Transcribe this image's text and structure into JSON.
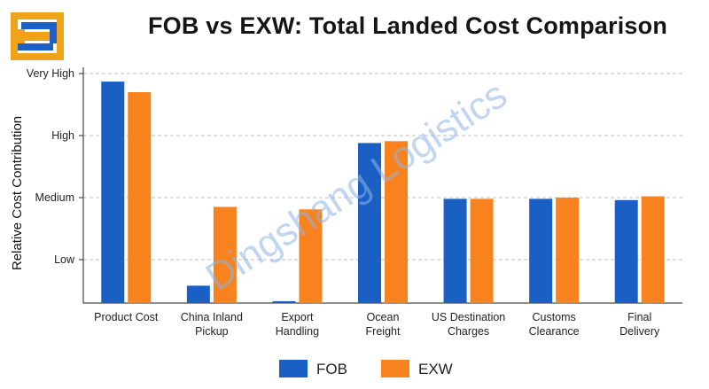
{
  "logo": {
    "icon": "brand-logo-icon",
    "colors": [
      "#f0a21a",
      "#1f5fc6"
    ]
  },
  "watermark": "Dingshang Logistics",
  "chart_data": {
    "type": "bar",
    "title": "FOB vs EXW: Total Landed Cost Comparison",
    "xlabel": "",
    "ylabel": "Relative Cost Contribution",
    "ylim": [
      0.3,
      4.1
    ],
    "yticks": [
      {
        "value": 1,
        "label": "Low"
      },
      {
        "value": 2,
        "label": "Medium"
      },
      {
        "value": 3,
        "label": "High"
      },
      {
        "value": 4,
        "label": "Very High"
      }
    ],
    "grid": true,
    "legend_position": "bottom",
    "categories": [
      [
        "Product Cost"
      ],
      [
        "China Inland",
        "Pickup"
      ],
      [
        "Export",
        "Handling"
      ],
      [
        "Ocean",
        "Freight"
      ],
      [
        "US Destination",
        "Charges"
      ],
      [
        "Customs",
        "Clearance"
      ],
      [
        "Final",
        "Delivery"
      ]
    ],
    "series": [
      {
        "name": "FOB",
        "color": "#1a5fc4",
        "values": [
          3.87,
          0.58,
          0.33,
          2.88,
          1.98,
          1.98,
          1.96
        ]
      },
      {
        "name": "EXW",
        "color": "#f7821e",
        "values": [
          3.7,
          1.85,
          1.81,
          2.91,
          1.98,
          2.0,
          2.02
        ]
      }
    ]
  }
}
